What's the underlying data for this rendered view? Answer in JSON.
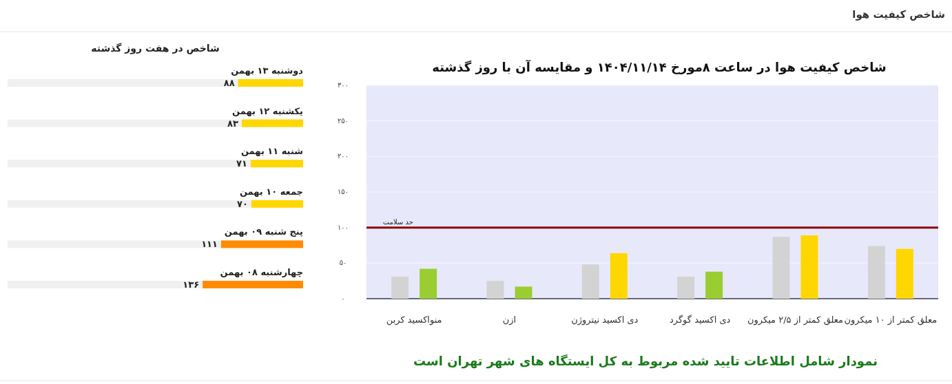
{
  "chart_data": [
    {
      "type": "other",
      "title": "شاخص کیفیت هوا"
    },
    {
      "type": "bar",
      "title": "شاخص کیفیت هوا در ساعت ۸مورخ ۱۴۰۴/۱۱/۱۴ و مقایسه آن با روز گذشته",
      "categories": [
        "منواکسید کربن",
        "ازن",
        "دی اکسید نیتروژن",
        "دی اکسید گوگرد",
        "معلق کمتر از ۲/۵ میکرون",
        "معلق کمتر از ۱۰ میکرون"
      ],
      "series": [
        {
          "color": "#d3d3d3",
          "values": [
            31,
            25,
            48,
            31,
            87,
            74
          ]
        },
        {
          "colors": [
            "#9acd32",
            "#9acd32",
            "#ffd700",
            "#9acd32",
            "#ffd700",
            "#ffd700"
          ],
          "values": [
            42,
            17,
            64,
            38,
            89,
            70
          ]
        }
      ],
      "ylim": [
        0,
        300
      ],
      "yticks": [
        {
          "value": 0,
          "label": "۰"
        },
        {
          "value": 50,
          "label": "۵۰"
        },
        {
          "value": 100,
          "label": "۱۰۰"
        },
        {
          "value": 150,
          "label": "۱۵۰"
        },
        {
          "value": 200,
          "label": "۲۰۰"
        },
        {
          "value": 250,
          "label": "۲۵۰"
        },
        {
          "value": 300,
          "label": "۳۰۰"
        }
      ],
      "grid": "y",
      "ref_lines": [
        {
          "axis": "y",
          "value": 100,
          "label": "حد سلامت",
          "color": "#8b0000"
        }
      ],
      "annotations": [
        "نمودار شامل اطلاعات تایید شده مربوط به کل ایستگاه های شهر تهران است"
      ]
    },
    {
      "type": "bar",
      "orientation": "horizontal",
      "title": "شاخص در هفت روز گذشته",
      "categories": [
        "دوشنبه ۱۳ بهمن",
        "یکشنبه ۱۲ بهمن",
        "شنبه ۱۱ بهمن",
        "جمعه ۱۰ بهمن",
        "پنج شنبه ۰۹ بهمن",
        "چهارشنبه ۰۸ بهمن"
      ],
      "values": [
        88,
        83,
        71,
        70,
        111,
        136
      ],
      "value_labels": [
        "۸۸",
        "۸۳",
        "۷۱",
        "۷۰",
        "۱۱۱",
        "۱۳۶"
      ],
      "colors": [
        "#ffd700",
        "#ffd700",
        "#ffd700",
        "#ffd700",
        "#ff8c00",
        "#ff8c00"
      ],
      "xlim": [
        400,
        0
      ]
    }
  ]
}
